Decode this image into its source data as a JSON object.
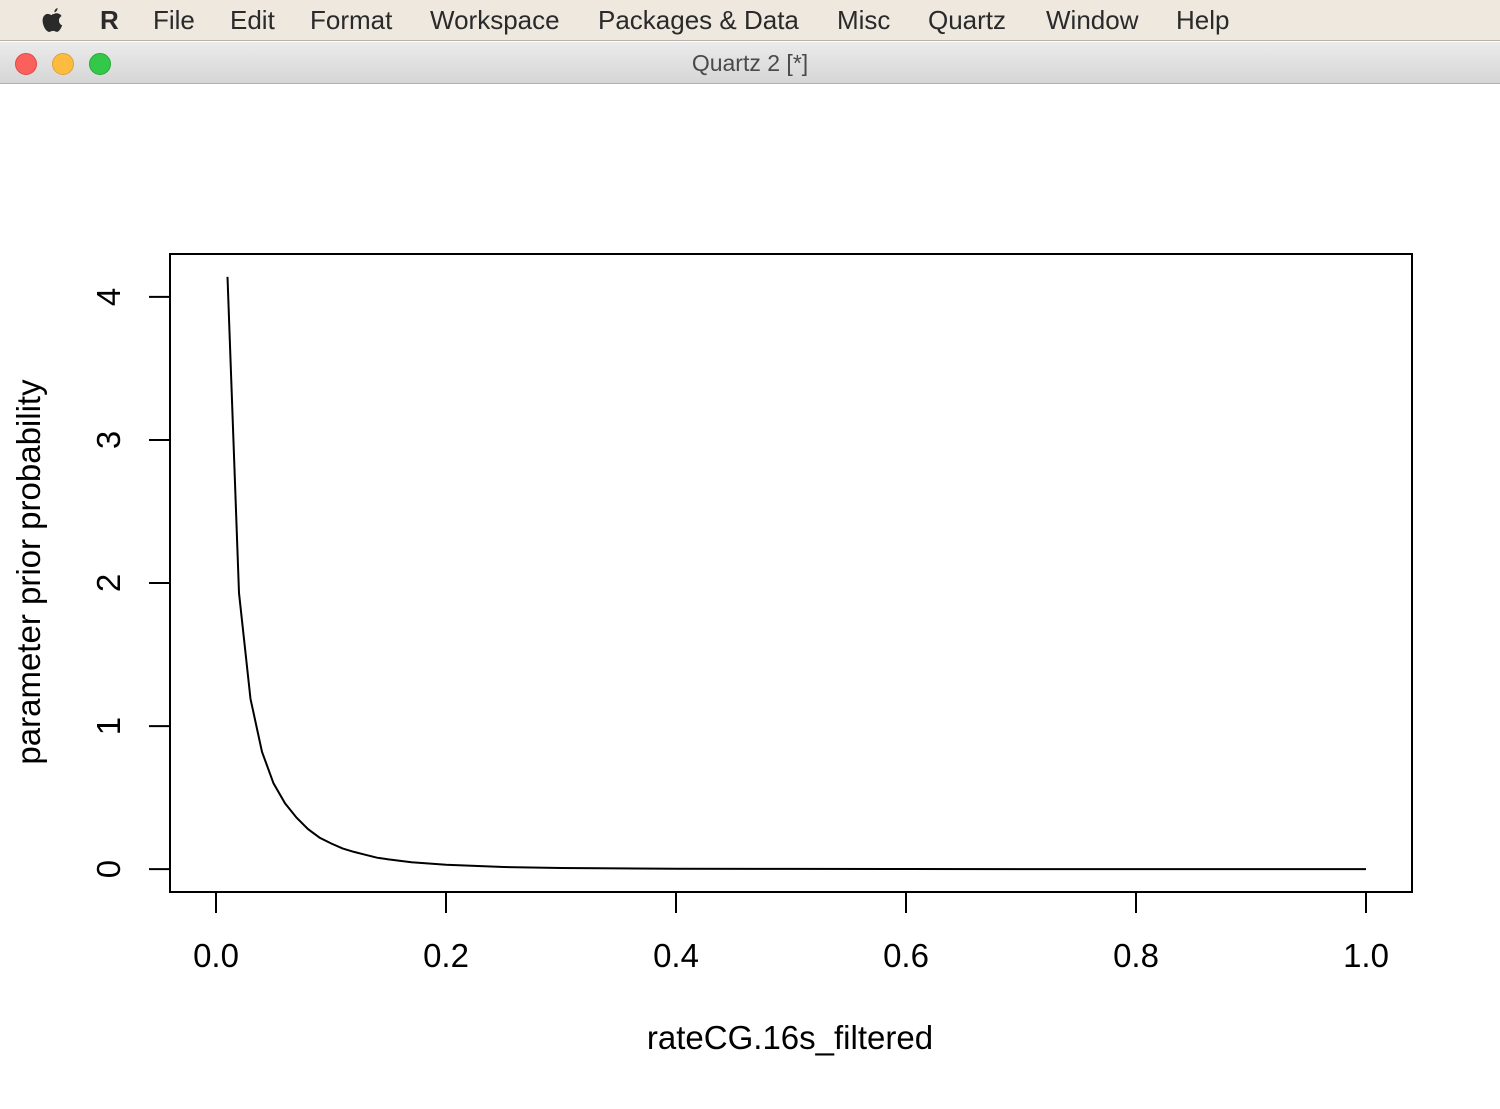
{
  "menubar": {
    "apple_icon": "apple-icon",
    "app_name": "R",
    "items": [
      "File",
      "Edit",
      "Format",
      "Workspace",
      "Packages & Data",
      "Misc",
      "Quartz",
      "Window",
      "Help"
    ]
  },
  "window": {
    "title": "Quartz 2 [*]",
    "controls": {
      "close_color": "#fc605c",
      "minimize_color": "#fdbc40",
      "zoom_color": "#34c84a"
    }
  },
  "chart_data": {
    "type": "line",
    "title": "",
    "xlabel": "rateCG.16s_filtered",
    "ylabel": "parameter prior probability",
    "xlim": [
      -0.04,
      1.04
    ],
    "ylim": [
      -0.16,
      4.3
    ],
    "xticks": [
      0.0,
      0.2,
      0.4,
      0.6,
      0.8,
      1.0
    ],
    "xtick_labels": [
      "0.0",
      "0.2",
      "0.4",
      "0.6",
      "0.8",
      "1.0"
    ],
    "yticks": [
      0,
      1,
      2,
      3,
      4
    ],
    "ytick_labels": [
      "0",
      "1",
      "2",
      "3",
      "4"
    ],
    "grid": false,
    "legend": "none",
    "line_color": "#000000",
    "series": [
      {
        "x": [
          0.01,
          0.02,
          0.03,
          0.04,
          0.05,
          0.06,
          0.07,
          0.08,
          0.09,
          0.1,
          0.11,
          0.12,
          0.13,
          0.14,
          0.15,
          0.17,
          0.2,
          0.25,
          0.3,
          0.35,
          0.4,
          0.5,
          0.6,
          0.7,
          0.8,
          0.9,
          1.0
        ],
        "y": [
          4.14,
          1.93,
          1.19,
          0.82,
          0.6,
          0.46,
          0.36,
          0.28,
          0.22,
          0.18,
          0.145,
          0.12,
          0.1,
          0.08,
          0.068,
          0.048,
          0.03,
          0.015,
          0.008,
          0.005,
          0.003,
          0.0012,
          0.0005,
          0.0002,
          0.0001,
          5e-05,
          0.0
        ]
      }
    ]
  }
}
